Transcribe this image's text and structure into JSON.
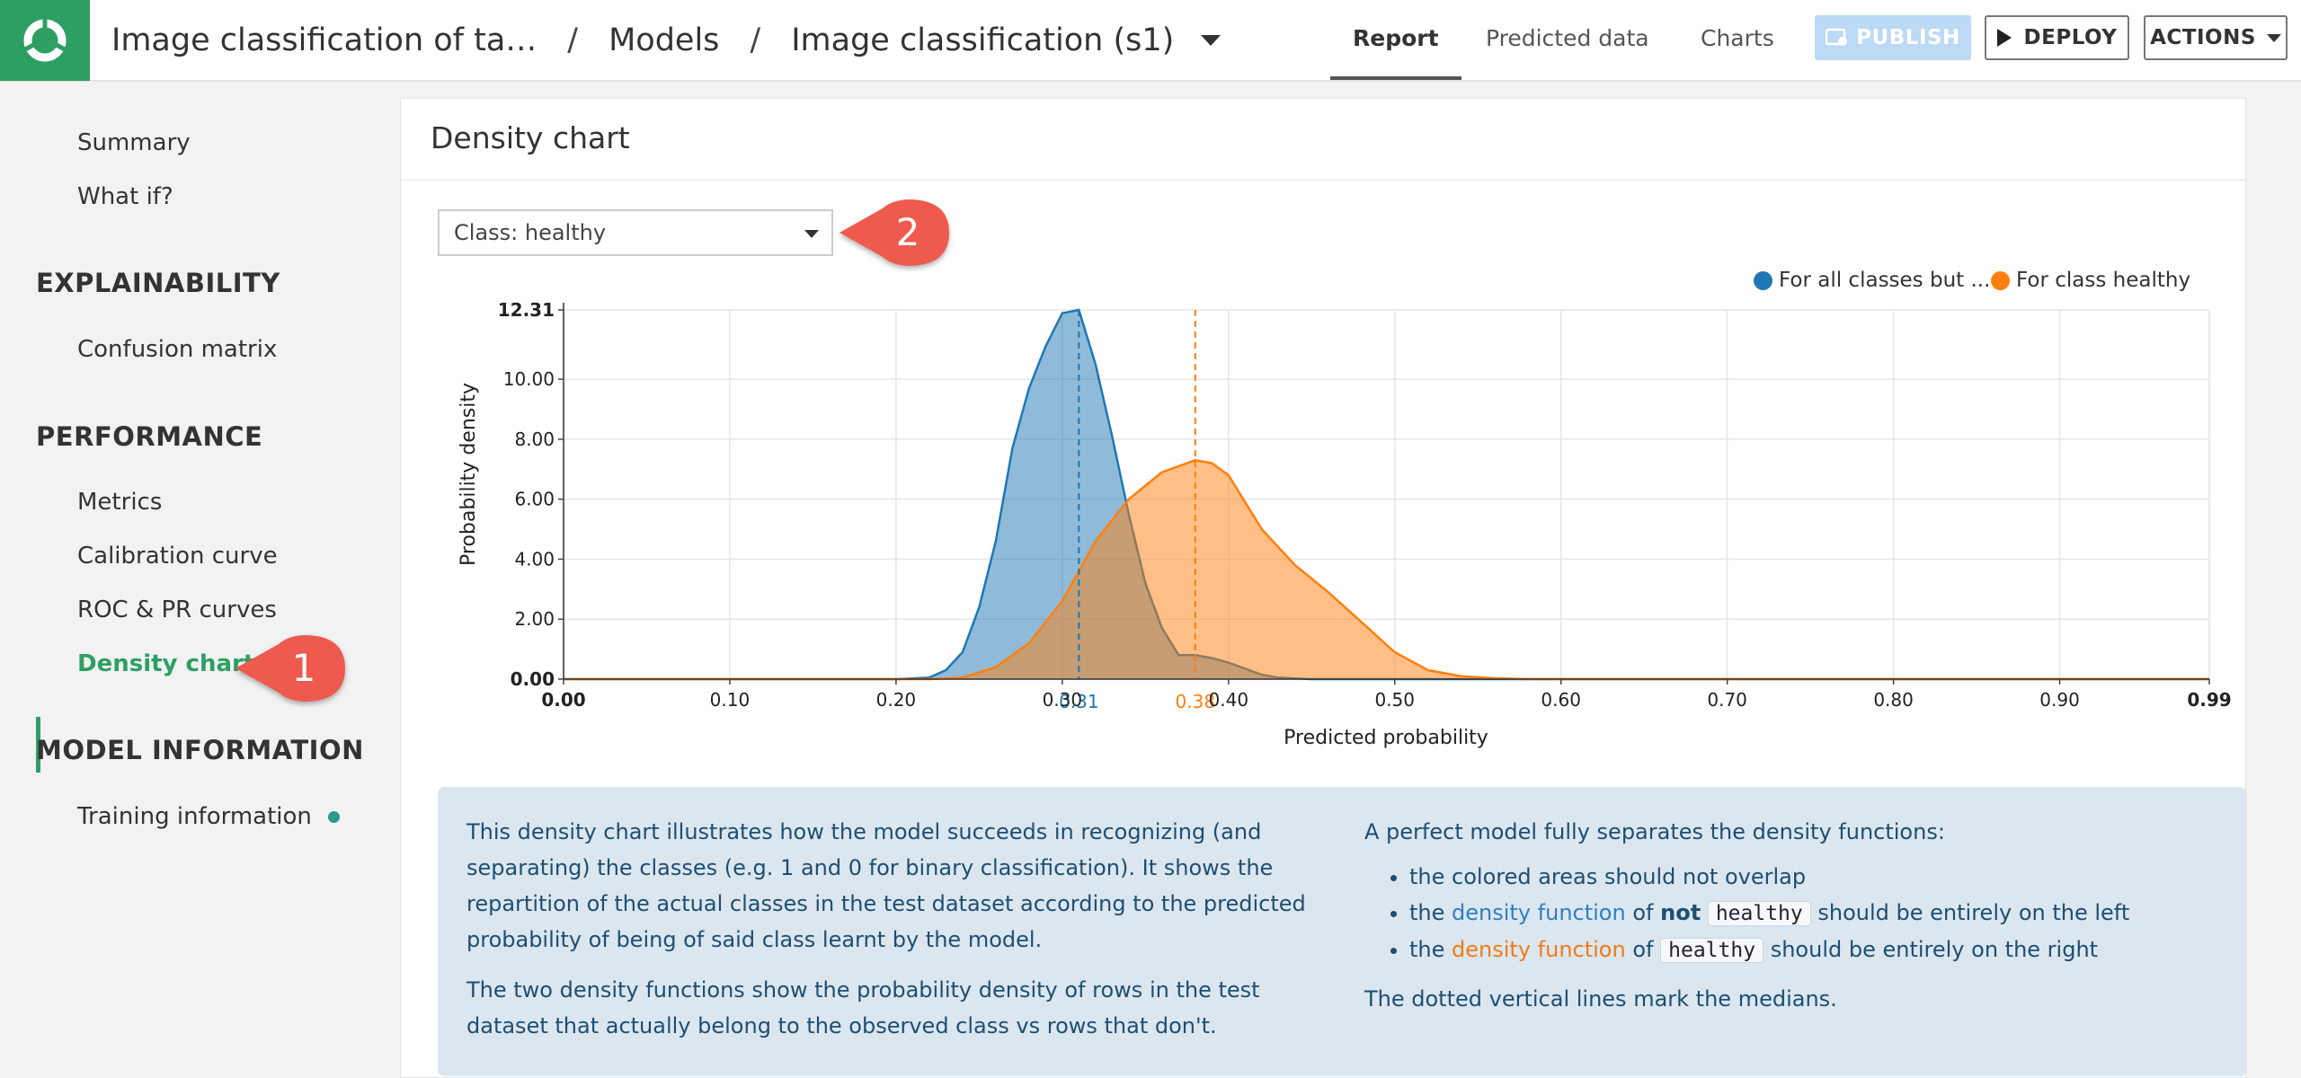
{
  "header": {
    "breadcrumbs": [
      "Image classification of ta…",
      "Models",
      "Image classification (s1)"
    ],
    "tabs": [
      "Report",
      "Predicted data",
      "Charts"
    ],
    "active_tab": "Report",
    "publish_label": "PUBLISH",
    "deploy_label": "DEPLOY",
    "actions_label": "ACTIONS"
  },
  "sidebar": {
    "top_items": [
      "Summary",
      "What if?"
    ],
    "sections": [
      {
        "title": "EXPLAINABILITY",
        "items": [
          "Confusion matrix"
        ]
      },
      {
        "title": "PERFORMANCE",
        "items": [
          "Metrics",
          "Calibration curve",
          "ROC & PR curves",
          "Density chart"
        ]
      },
      {
        "title": "MODEL INFORMATION",
        "items": [
          "Training information"
        ]
      }
    ],
    "active_item": "Density chart"
  },
  "callouts": [
    "1",
    "2"
  ],
  "panel": {
    "title": "Density chart",
    "class_select": "Class: healthy"
  },
  "chart_data": {
    "type": "area",
    "xlabel": "Predicted probability",
    "ylabel": "Probability density",
    "xlim": [
      0.0,
      0.99
    ],
    "ylim": [
      0.0,
      12.31
    ],
    "x_ticks": [
      "0.00",
      "0.10",
      "0.20",
      "0.30",
      "0.40",
      "0.50",
      "0.60",
      "0.70",
      "0.80",
      "0.90",
      "0.99"
    ],
    "y_ticks": [
      "0.00",
      "2.00",
      "4.00",
      "6.00",
      "8.00",
      "10.00",
      "12.31"
    ],
    "grid": true,
    "legend_position": "top-right",
    "series": [
      {
        "name": "For all classes but ...",
        "color": "#1f77b4",
        "median": 0.31,
        "median_label": "0.31",
        "x": [
          0.0,
          0.2,
          0.22,
          0.23,
          0.24,
          0.25,
          0.26,
          0.27,
          0.28,
          0.29,
          0.3,
          0.31,
          0.32,
          0.33,
          0.34,
          0.35,
          0.36,
          0.37,
          0.38,
          0.39,
          0.4,
          0.41,
          0.42,
          0.43,
          0.44,
          0.45,
          0.47,
          0.5,
          0.99
        ],
        "y": [
          0.0,
          0.0,
          0.05,
          0.3,
          0.9,
          2.4,
          4.6,
          7.7,
          9.7,
          11.1,
          12.2,
          12.31,
          10.5,
          8.1,
          5.5,
          3.2,
          1.7,
          0.8,
          0.8,
          0.7,
          0.55,
          0.35,
          0.15,
          0.05,
          0.02,
          0.0,
          0.0,
          0.0,
          0.0
        ]
      },
      {
        "name": "For class healthy",
        "color": "#ff7f0e",
        "median": 0.38,
        "median_label": "0.38",
        "x": [
          0.0,
          0.22,
          0.24,
          0.26,
          0.28,
          0.3,
          0.32,
          0.34,
          0.36,
          0.38,
          0.39,
          0.4,
          0.42,
          0.44,
          0.46,
          0.48,
          0.5,
          0.52,
          0.54,
          0.56,
          0.58,
          0.99
        ],
        "y": [
          0.0,
          0.0,
          0.05,
          0.4,
          1.2,
          2.6,
          4.6,
          6.0,
          6.9,
          7.3,
          7.2,
          6.8,
          5.0,
          3.8,
          2.9,
          1.9,
          0.9,
          0.3,
          0.1,
          0.03,
          0.0,
          0.0
        ]
      }
    ]
  },
  "info": {
    "left_p1": "This density chart illustrates how the model succeeds in recognizing (and separating) the classes (e.g. 1 and 0 for binary classification). It shows the repartition of the actual classes in the test dataset according to the predicted probability of being of said class learnt by the model.",
    "left_p2": "The two density functions show the probability density of rows in the test dataset that actually belong to the observed class vs rows that don't.",
    "right_intro": "A perfect model fully separates the density functions:",
    "bullet1": "the colored areas should not overlap",
    "bullet_the": "the",
    "density_function": "density function",
    "of": "of",
    "not": "not",
    "class_code": "healthy",
    "left_suffix": "should be entirely on the left",
    "right_suffix": "should be entirely on the right",
    "right_outro": "The dotted vertical lines mark the medians."
  }
}
